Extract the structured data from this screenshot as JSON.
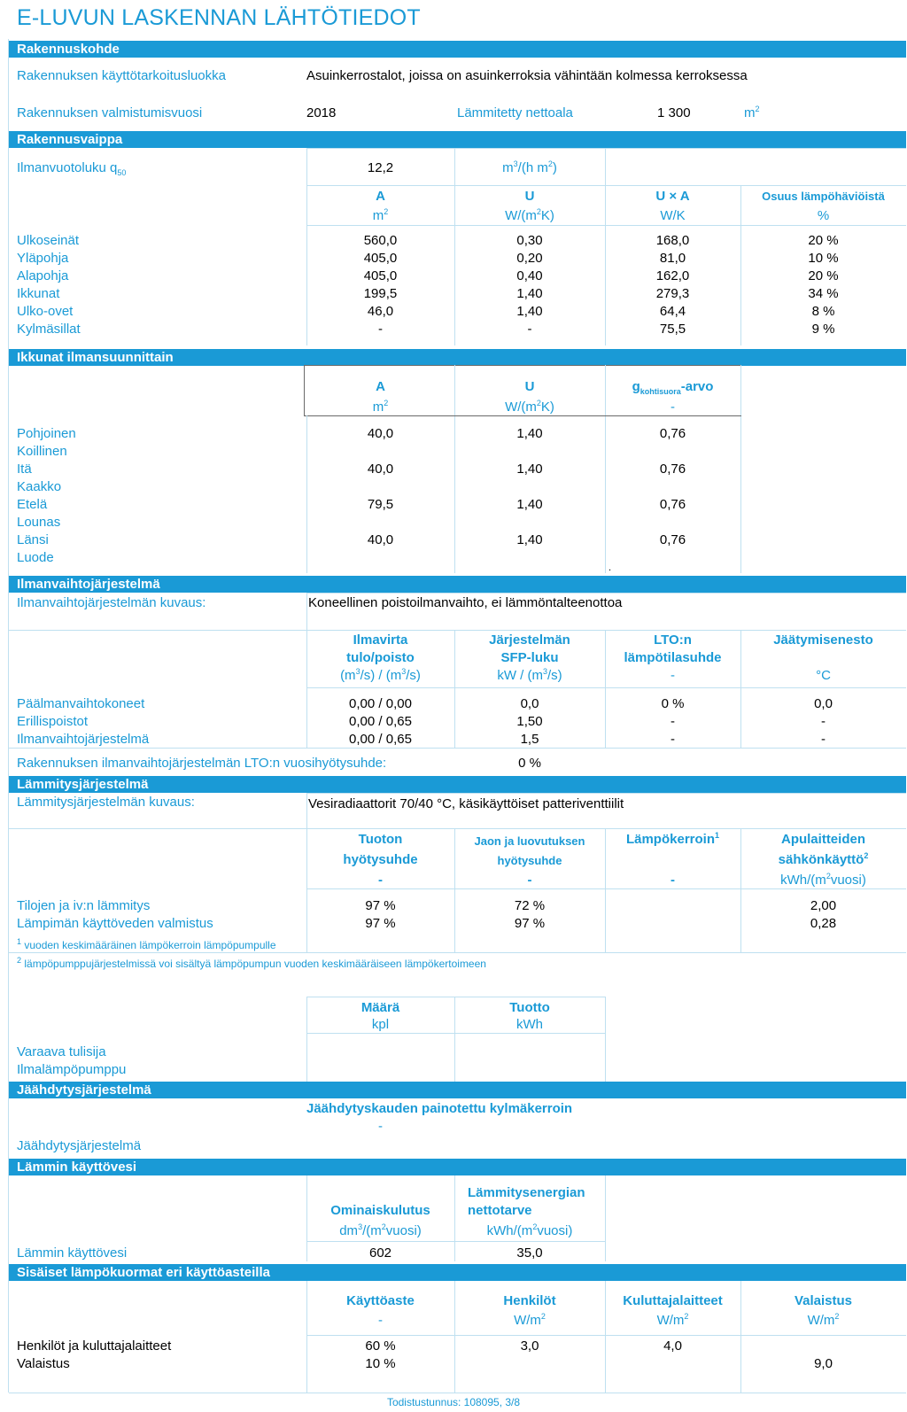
{
  "page_title": "E-LUVUN LASKENNAN LÄHTÖTIEDOT",
  "sections": {
    "rakennuskohde": "Rakennuskohde",
    "rakennusvaippa": "Rakennusvaippa",
    "ikkunat": "Ikkunat ilmansuunnittain",
    "ilmanvaihto": "Ilmanvaihtojärjestelmä",
    "lammitys": "Lämmitysjärjestelmä",
    "jaahdytys": "Jäähdytysjärjestelmä",
    "lammin_vesi": "Lämmin käyttövesi",
    "sisaiset": "Sisäiset lämpökuormat eri käyttöasteilla"
  },
  "rakennuskohde": {
    "kayttotarkoitus_label": "Rakennuksen käyttötarkoitusluokka",
    "kayttotarkoitus_value": "Asuinkerrostalot, joissa on asuinkerroksia vähintään kolmessa kerroksessa",
    "valmistumisvuosi_label": "Rakennuksen valmistumisvuosi",
    "valmistumisvuosi_value": "2018",
    "nettoala_label": "Lämmitetty nettoala",
    "nettoala_value": "1 300",
    "nettoala_unit": "m"
  },
  "vaippa": {
    "q50_label": "Ilmanvuotoluku q",
    "q50_sub": "50",
    "q50_value": "12,2",
    "q50_unit": "m³/(h m²)",
    "headers": [
      "A",
      "U",
      "U × A",
      "Osuus lämpöhäviöistä"
    ],
    "units": [
      "m²",
      "W/(m²K)",
      "W/K",
      "%"
    ],
    "rows": [
      {
        "label": "Ulkoseinät",
        "a": "560,0",
        "u": "0,30",
        "ua": "168,0",
        "osuus": "20 %"
      },
      {
        "label": "Yläpohja",
        "a": "405,0",
        "u": "0,20",
        "ua": "81,0",
        "osuus": "10 %"
      },
      {
        "label": "Alapohja",
        "a": "405,0",
        "u": "0,40",
        "ua": "162,0",
        "osuus": "20 %"
      },
      {
        "label": "Ikkunat",
        "a": "199,5",
        "u": "1,40",
        "ua": "279,3",
        "osuus": "34 %"
      },
      {
        "label": "Ulko-ovet",
        "a": "46,0",
        "u": "1,40",
        "ua": "64,4",
        "osuus": "8 %"
      },
      {
        "label": "Kylmäsillat",
        "a": "-",
        "u": "-",
        "ua": "75,5",
        "osuus": "9 %"
      }
    ]
  },
  "ikkunat": {
    "headers": [
      "A",
      "U",
      "g",
      "kohtisuora",
      "-arvo"
    ],
    "units": [
      "m²",
      "W/(m²K)",
      "-"
    ],
    "rows": [
      {
        "label": "Pohjoinen",
        "a": "40,0",
        "u": "1,40",
        "g": "0,76"
      },
      {
        "label": "Koillinen",
        "a": "",
        "u": "",
        "g": ""
      },
      {
        "label": "Itä",
        "a": "40,0",
        "u": "1,40",
        "g": "0,76"
      },
      {
        "label": "Kaakko",
        "a": "",
        "u": "",
        "g": ""
      },
      {
        "label": "Etelä",
        "a": "79,5",
        "u": "1,40",
        "g": "0,76"
      },
      {
        "label": "Lounas",
        "a": "",
        "u": "",
        "g": ""
      },
      {
        "label": "Länsi",
        "a": "40,0",
        "u": "1,40",
        "g": "0,76"
      },
      {
        "label": "Luode",
        "a": "",
        "u": "",
        "g": ""
      }
    ],
    "dot": "."
  },
  "ilmanvaihto": {
    "kuvaus_label": "Ilmanvaihtojärjestelmän kuvaus:",
    "kuvaus_value": "Koneellinen poistoilmanvaihto, ei lämmöntalteenottoa",
    "h1": [
      "Ilmavirta",
      "tulo/poisto",
      "(m³/s) / (m³/s)"
    ],
    "h2": [
      "Järjestelmän",
      "SFP-luku",
      "kW / (m³/s)"
    ],
    "h3": [
      "LTO:n",
      "lämpötilasuhde",
      "-"
    ],
    "h4": [
      "Jäätymisenesto",
      "°C"
    ],
    "rows": [
      {
        "label": "Päälmanvaihtokoneet",
        "ilmavirta": "0,00 / 0,00",
        "sfp": "0,0",
        "lto": "0 %",
        "jaaty": "0,0"
      },
      {
        "label": "Erillispoistot",
        "ilmavirta": "0,00 / 0,65",
        "sfp": "1,50",
        "lto": "-",
        "jaaty": "-"
      },
      {
        "label": "Ilmanvaihtojärjestelmä",
        "ilmavirta": "0,00 / 0,65",
        "sfp": "1,5",
        "lto": "-",
        "jaaty": "-"
      }
    ],
    "vuosi_label": "Rakennuksen ilmanvaihtojärjestelmän LTO:n vuosihyötysuhde:",
    "vuosi_value": "0 %"
  },
  "lammitys": {
    "kuvaus_label": "Lämmitysjärjestelmän kuvaus:",
    "kuvaus_value": "Vesiradiaattorit 70/40 °C, käsikäyttöiset patteriventtiilit",
    "h1": [
      "Tuoton",
      "hyötysuhde",
      "-"
    ],
    "h2": [
      "Jaon ja luovutuksen",
      "hyötysuhde",
      "-"
    ],
    "h3": [
      "Lämpökerroin",
      "1",
      "-"
    ],
    "h4": [
      "Apulaitteiden",
      "sähkönkäyttö",
      "2",
      "kWh/(m²vuosi)"
    ],
    "rows": [
      {
        "label": "Tilojen ja iv:n lämmitys",
        "tuotto": "97 %",
        "jako": "72 %",
        "apu": "2,00"
      },
      {
        "label": "Lämpimän käyttöveden valmistus",
        "tuotto": "97 %",
        "jako": "97 %",
        "apu": "0,28"
      }
    ],
    "note1_num": "1",
    "note1": "vuoden keskimääräinen lämpökerroin lämpöpumpulle",
    "note2_num": "2",
    "note2": "lämpöpumppujärjestelmissä voi sisältyä lämpöpumpun vuoden keskimääräiseen lämpökertoimeen",
    "extra_h": [
      "Määrä",
      "Tuotto"
    ],
    "extra_u": [
      "kpl",
      "kWh"
    ],
    "extra_rows": [
      "Varaava tulisija",
      "Ilmalämpöpumppu"
    ]
  },
  "jaahdytys": {
    "header": "Jäähdytyskauden painotettu kylmäkerroin",
    "value": "-",
    "label": "Jäähdytysjärjestelmä"
  },
  "lammin_vesi": {
    "h1": "Ominaiskulutus",
    "h1u": "dm³/(m²vuosi)",
    "h2a": "Lämmitysenergian",
    "h2b": "nettotarve",
    "h2u": "kWh/(m²vuosi)",
    "label": "Lämmin käyttövesi",
    "v1": "602",
    "v2": "35,0"
  },
  "sisaiset": {
    "headers": [
      "Käyttöaste",
      "Henkilöt",
      "Kuluttajalaitteet",
      "Valaistus"
    ],
    "units": [
      "-",
      "W/m²",
      "W/m²",
      "W/m²"
    ],
    "rows": [
      {
        "label": "Henkilöt ja kuluttajalaitteet",
        "aste": "60 %",
        "henk": "3,0",
        "kul": "4,0",
        "val": ""
      },
      {
        "label": "Valaistus",
        "aste": "10 %",
        "henk": "",
        "kul": "",
        "val": "9,0"
      }
    ]
  },
  "footer": "Todistustunnus: 108095, 3/8"
}
